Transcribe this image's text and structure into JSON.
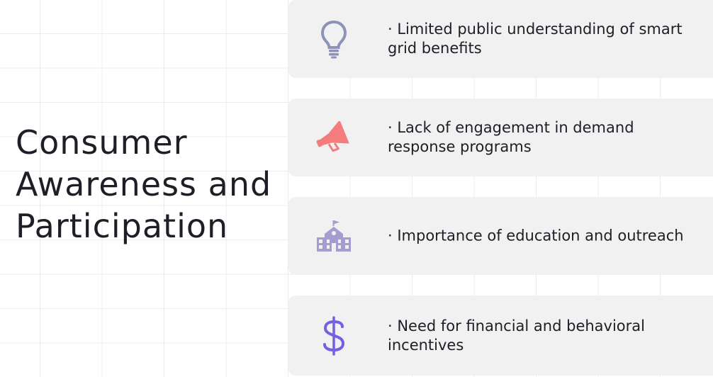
{
  "title": "Consumer Awareness and Participation",
  "items": [
    {
      "icon": "lightbulb-icon",
      "color": "#8d92b8",
      "text": "· Limited public understanding of smart grid benefits"
    },
    {
      "icon": "megaphone-icon",
      "color": "#f47c7c",
      "text": "· Lack of engagement in demand response programs"
    },
    {
      "icon": "school-icon",
      "color": "#a79ccf",
      "text": "· Importance of education and outreach"
    },
    {
      "icon": "dollar-icon",
      "color": "#7460e0",
      "text": "· Need for financial and behavioral incentives"
    }
  ]
}
